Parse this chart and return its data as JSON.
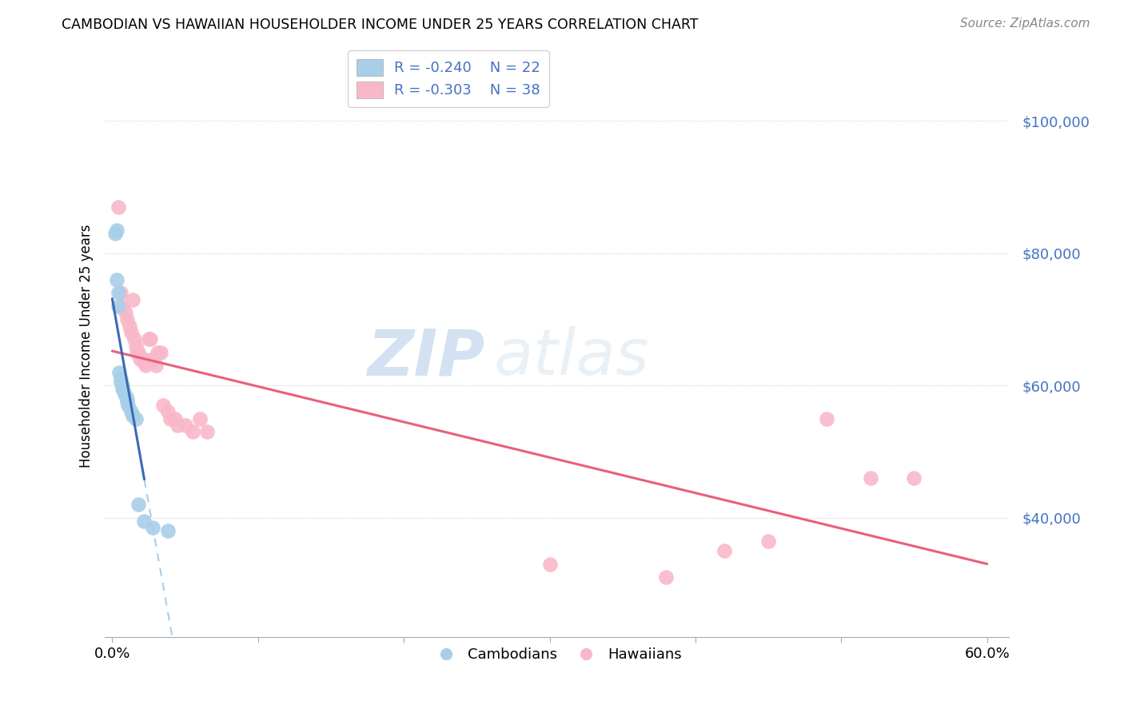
{
  "title": "CAMBODIAN VS HAWAIIAN HOUSEHOLDER INCOME UNDER 25 YEARS CORRELATION CHART",
  "source": "Source: ZipAtlas.com",
  "ylabel": "Householder Income Under 25 years",
  "watermark_zip": "ZIP",
  "watermark_atlas": "atlas",
  "legend_r_cambodian": "R = -0.240",
  "legend_n_cambodian": "N = 22",
  "legend_r_hawaiian": "R = -0.303",
  "legend_n_hawaiian": "N = 38",
  "yticks": [
    40000,
    60000,
    80000,
    100000
  ],
  "ytick_labels": [
    "$40,000",
    "$60,000",
    "$80,000",
    "$100,000"
  ],
  "ylim": [
    22000,
    110000
  ],
  "xlim": [
    -0.005,
    0.615
  ],
  "xticks": [
    0.0,
    0.1,
    0.2,
    0.3,
    0.4,
    0.5,
    0.6
  ],
  "xtick_labels": [
    "0.0%",
    "",
    "",
    "",
    "",
    "",
    "60.0%"
  ],
  "cambodian_color": "#a8cfe8",
  "hawaiian_color": "#f9b8c9",
  "cambodian_line_color": "#3b6ab5",
  "hawaiian_line_color": "#e8607a",
  "cambodian_dashed_color": "#a8cfe8",
  "background_color": "#ffffff",
  "cambodian_x": [
    0.002,
    0.003,
    0.003,
    0.004,
    0.004,
    0.005,
    0.006,
    0.006,
    0.007,
    0.007,
    0.008,
    0.009,
    0.01,
    0.01,
    0.011,
    0.013,
    0.014,
    0.016,
    0.018,
    0.022,
    0.028,
    0.038
  ],
  "cambodian_y": [
    83000,
    83500,
    76000,
    74000,
    72000,
    62000,
    61000,
    60500,
    60000,
    59500,
    59000,
    58500,
    58000,
    57500,
    57000,
    56000,
    55500,
    55000,
    42000,
    39500,
    38500,
    38000
  ],
  "hawaiian_x": [
    0.004,
    0.006,
    0.007,
    0.009,
    0.01,
    0.012,
    0.013,
    0.014,
    0.015,
    0.016,
    0.017,
    0.018,
    0.019,
    0.021,
    0.022,
    0.023,
    0.025,
    0.026,
    0.028,
    0.03,
    0.031,
    0.033,
    0.035,
    0.038,
    0.04,
    0.043,
    0.045,
    0.05,
    0.055,
    0.06,
    0.065,
    0.3,
    0.38,
    0.42,
    0.45,
    0.49,
    0.52,
    0.55
  ],
  "hawaiian_y": [
    87000,
    74000,
    72000,
    71000,
    70000,
    69000,
    68000,
    73000,
    67000,
    66000,
    65000,
    65000,
    64000,
    64000,
    63500,
    63000,
    67000,
    67000,
    64000,
    63000,
    65000,
    65000,
    57000,
    56000,
    55000,
    55000,
    54000,
    54000,
    53000,
    55000,
    53000,
    33000,
    31000,
    35000,
    36500,
    55000,
    46000,
    46000
  ]
}
